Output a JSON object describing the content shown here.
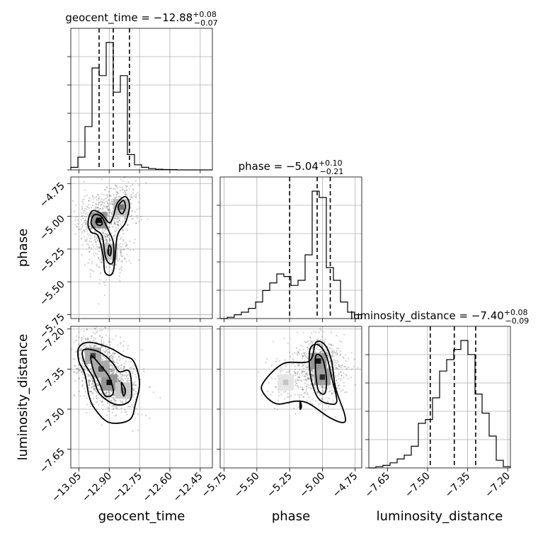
{
  "chart_data": {
    "type": "corner",
    "parameters": [
      "geocent_time",
      "phase",
      "luminosity_distance"
    ],
    "titles": {
      "geocent_time": {
        "label": "geocent_time = ",
        "median": "−12.88",
        "plus": "+0.08",
        "minus": "−0.07"
      },
      "phase": {
        "label": "phase = ",
        "median": "−5.04",
        "plus": "+0.10",
        "minus": "−0.21"
      },
      "luminosity_distance": {
        "label": "luminosity_distance = ",
        "median": "−7.40",
        "plus": "+0.08",
        "minus": "−0.09"
      }
    },
    "axis_labels": {
      "geocent_time": "geocent_time",
      "phase": "phase",
      "luminosity_distance": "luminosity_distance"
    },
    "ranges": {
      "geocent_time": [
        -13.09,
        -12.39
      ],
      "phase": [
        -5.78,
        -4.7
      ],
      "luminosity_distance": [
        -7.72,
        -7.19
      ]
    },
    "ticks": {
      "geocent_time": [
        -13.05,
        -12.9,
        -12.75,
        -12.6,
        -12.45
      ],
      "phase": [
        -5.75,
        -5.5,
        -5.25,
        -5.0,
        -4.75
      ],
      "luminosity_distance": [
        -7.65,
        -7.5,
        -7.35,
        -7.2
      ]
    },
    "tick_labels": {
      "geocent_time": [
        "−13.05",
        "−12.90",
        "−12.75",
        "−12.60",
        "−12.45"
      ],
      "phase": [
        "−5.75",
        "−5.50",
        "−5.25",
        "−5.00",
        "−4.75"
      ],
      "luminosity_distance": [
        "−7.65",
        "−7.50",
        "−7.35",
        "−7.20"
      ]
    },
    "quantiles": {
      "geocent_time": [
        -12.95,
        -12.88,
        -12.8
      ],
      "phase": [
        -5.25,
        -5.04,
        -4.94
      ],
      "luminosity_distance": [
        -7.49,
        -7.4,
        -7.32
      ]
    },
    "histograms": {
      "geocent_time": {
        "edges": [
          -13.09,
          -13.055,
          -13.02,
          -12.985,
          -12.95,
          -12.915,
          -12.88,
          -12.845,
          -12.81,
          -12.775,
          -12.74,
          -12.705,
          -12.67,
          -12.635,
          -12.6,
          -12.565,
          -12.53,
          -12.495,
          -12.46,
          -12.425,
          -12.39
        ],
        "counts": [
          2,
          10,
          34,
          80,
          74,
          100,
          61,
          74,
          12,
          4,
          2,
          1,
          0.5,
          0.3,
          0.2,
          0,
          0,
          0,
          0,
          0
        ]
      },
      "phase": {
        "edges": [
          -5.78,
          -5.726,
          -5.672,
          -5.618,
          -5.564,
          -5.51,
          -5.456,
          -5.402,
          -5.348,
          -5.294,
          -5.24,
          -5.186,
          -5.132,
          -5.078,
          -5.024,
          -4.97,
          -4.916,
          -4.862,
          -4.808,
          -4.754,
          -4.7
        ],
        "counts": [
          0,
          1,
          3,
          5,
          8,
          13,
          22,
          28,
          35,
          33,
          26,
          30,
          50,
          100,
          95,
          40,
          30,
          13,
          5,
          3
        ]
      },
      "luminosity_distance": {
        "edges": [
          -7.72,
          -7.6935,
          -7.667,
          -7.6405,
          -7.614,
          -7.5875,
          -7.561,
          -7.5345,
          -7.508,
          -7.4815,
          -7.455,
          -7.4285,
          -7.402,
          -7.3755,
          -7.349,
          -7.3225,
          -7.296,
          -7.2695,
          -7.243,
          -7.2165,
          -7.19
        ],
        "counts": [
          0,
          1,
          2,
          4,
          7,
          10,
          17,
          35,
          38,
          55,
          76,
          85,
          93,
          100,
          89,
          58,
          43,
          25,
          6,
          1
        ]
      }
    },
    "hist2d": [
      {
        "x": "geocent_time",
        "y": "phase",
        "xlim": [
          -13.09,
          -12.39
        ],
        "ylim": [
          -5.78,
          -4.7
        ],
        "hotspots": [
          [
            -12.95,
            -5.03,
            1.0
          ],
          [
            -12.84,
            -4.93,
            0.6
          ],
          [
            -12.9,
            -5.27,
            0.55
          ]
        ],
        "contours": [
          [
            [
              -12.985,
              -4.96
            ],
            [
              -12.94,
              -4.98
            ],
            [
              -12.9,
              -5.05
            ],
            [
              -12.88,
              -5.0
            ],
            [
              -12.86,
              -4.9
            ],
            [
              -12.82,
              -4.85
            ],
            [
              -12.8,
              -4.92
            ],
            [
              -12.82,
              -5.05
            ],
            [
              -12.86,
              -5.15
            ],
            [
              -12.88,
              -5.42
            ],
            [
              -12.92,
              -5.43
            ],
            [
              -12.93,
              -5.3
            ],
            [
              -12.955,
              -5.15
            ],
            [
              -12.99,
              -5.12
            ],
            [
              -13.005,
              -5.05
            ]
          ],
          [
            [
              -12.975,
              -4.99
            ],
            [
              -12.94,
              -5.0
            ],
            [
              -12.915,
              -5.07
            ],
            [
              -12.9,
              -5.12
            ],
            [
              -12.88,
              -5.2
            ],
            [
              -12.88,
              -5.34
            ],
            [
              -12.9,
              -5.36
            ],
            [
              -12.92,
              -5.3
            ],
            [
              -12.935,
              -5.15
            ],
            [
              -12.97,
              -5.1
            ],
            [
              -12.99,
              -5.05
            ]
          ],
          [
            [
              -12.96,
              -5.02
            ],
            [
              -12.94,
              -5.03
            ],
            [
              -12.935,
              -5.06
            ],
            [
              -12.95,
              -5.07
            ],
            [
              -12.965,
              -5.05
            ]
          ],
          [
            [
              -12.855,
              -4.92
            ],
            [
              -12.83,
              -4.88
            ],
            [
              -12.82,
              -4.93
            ],
            [
              -12.835,
              -4.98
            ],
            [
              -12.85,
              -4.96
            ]
          ],
          [
            [
              -12.9,
              -5.22
            ],
            [
              -12.89,
              -5.25
            ],
            [
              -12.895,
              -5.3
            ],
            [
              -12.905,
              -5.28
            ]
          ]
        ]
      },
      {
        "x": "geocent_time",
        "y": "luminosity_distance",
        "xlim": [
          -13.09,
          -12.39
        ],
        "ylim": [
          -7.72,
          -7.19
        ],
        "hotspots": [
          [
            -12.98,
            -7.3,
            0.8
          ],
          [
            -12.9,
            -7.4,
            1.0
          ],
          [
            -12.94,
            -7.35,
            0.8
          ],
          [
            -12.83,
            -7.43,
            0.5
          ]
        ],
        "contours": [
          [
            [
              -13.05,
              -7.27
            ],
            [
              -13.0,
              -7.25
            ],
            [
              -12.9,
              -7.27
            ],
            [
              -12.83,
              -7.3
            ],
            [
              -12.78,
              -7.32
            ],
            [
              -12.75,
              -7.4
            ],
            [
              -12.77,
              -7.48
            ],
            [
              -12.8,
              -7.54
            ],
            [
              -12.9,
              -7.55
            ],
            [
              -12.97,
              -7.5
            ],
            [
              -13.0,
              -7.45
            ],
            [
              -13.02,
              -7.37
            ],
            [
              -13.05,
              -7.32
            ]
          ],
          [
            [
              -13.03,
              -7.28
            ],
            [
              -12.97,
              -7.28
            ],
            [
              -12.92,
              -7.3
            ],
            [
              -12.88,
              -7.33
            ],
            [
              -12.85,
              -7.36
            ],
            [
              -12.8,
              -7.36
            ],
            [
              -12.79,
              -7.45
            ],
            [
              -12.82,
              -7.48
            ],
            [
              -12.88,
              -7.48
            ],
            [
              -12.95,
              -7.44
            ],
            [
              -12.98,
              -7.38
            ],
            [
              -13.02,
              -7.33
            ]
          ],
          [
            [
              -12.99,
              -7.3
            ],
            [
              -12.95,
              -7.33
            ],
            [
              -12.9,
              -7.38
            ],
            [
              -12.88,
              -7.44
            ],
            [
              -12.92,
              -7.45
            ],
            [
              -12.95,
              -7.4
            ],
            [
              -12.98,
              -7.35
            ]
          ],
          [
            [
              -12.84,
              -7.4
            ],
            [
              -12.83,
              -7.45
            ],
            [
              -12.82,
              -7.43
            ]
          ]
        ]
      },
      {
        "x": "phase",
        "y": "luminosity_distance",
        "xlim": [
          -5.78,
          -4.7
        ],
        "ylim": [
          -7.72,
          -7.19
        ],
        "hotspots": [
          [
            -5.03,
            -7.32,
            1.0
          ],
          [
            -5.0,
            -7.38,
            0.9
          ],
          [
            -5.28,
            -7.4,
            0.25
          ]
        ],
        "contours": [
          [
            [
              -5.45,
              -7.4
            ],
            [
              -5.3,
              -7.33
            ],
            [
              -5.1,
              -7.32
            ],
            [
              -5.05,
              -7.25
            ],
            [
              -4.98,
              -7.26
            ],
            [
              -4.93,
              -7.32
            ],
            [
              -4.9,
              -7.42
            ],
            [
              -4.83,
              -7.52
            ],
            [
              -4.84,
              -7.55
            ],
            [
              -4.95,
              -7.53
            ],
            [
              -5.1,
              -7.48
            ],
            [
              -5.2,
              -7.47
            ],
            [
              -5.35,
              -7.48
            ],
            [
              -5.45,
              -7.44
            ]
          ],
          [
            [
              -5.09,
              -7.27
            ],
            [
              -5.03,
              -7.26
            ],
            [
              -4.97,
              -7.3
            ],
            [
              -4.93,
              -7.38
            ],
            [
              -4.89,
              -7.47
            ],
            [
              -4.95,
              -7.48
            ],
            [
              -5.03,
              -7.46
            ],
            [
              -5.08,
              -7.4
            ],
            [
              -5.1,
              -7.33
            ]
          ],
          [
            [
              -5.05,
              -7.3
            ],
            [
              -5.0,
              -7.31
            ],
            [
              -4.97,
              -7.38
            ],
            [
              -4.98,
              -7.44
            ],
            [
              -5.03,
              -7.43
            ],
            [
              -5.05,
              -7.37
            ]
          ],
          [
            [
              -5.17,
              -7.47
            ],
            [
              -5.16,
              -7.49
            ],
            [
              -5.17,
              -7.5
            ]
          ]
        ]
      }
    ]
  }
}
